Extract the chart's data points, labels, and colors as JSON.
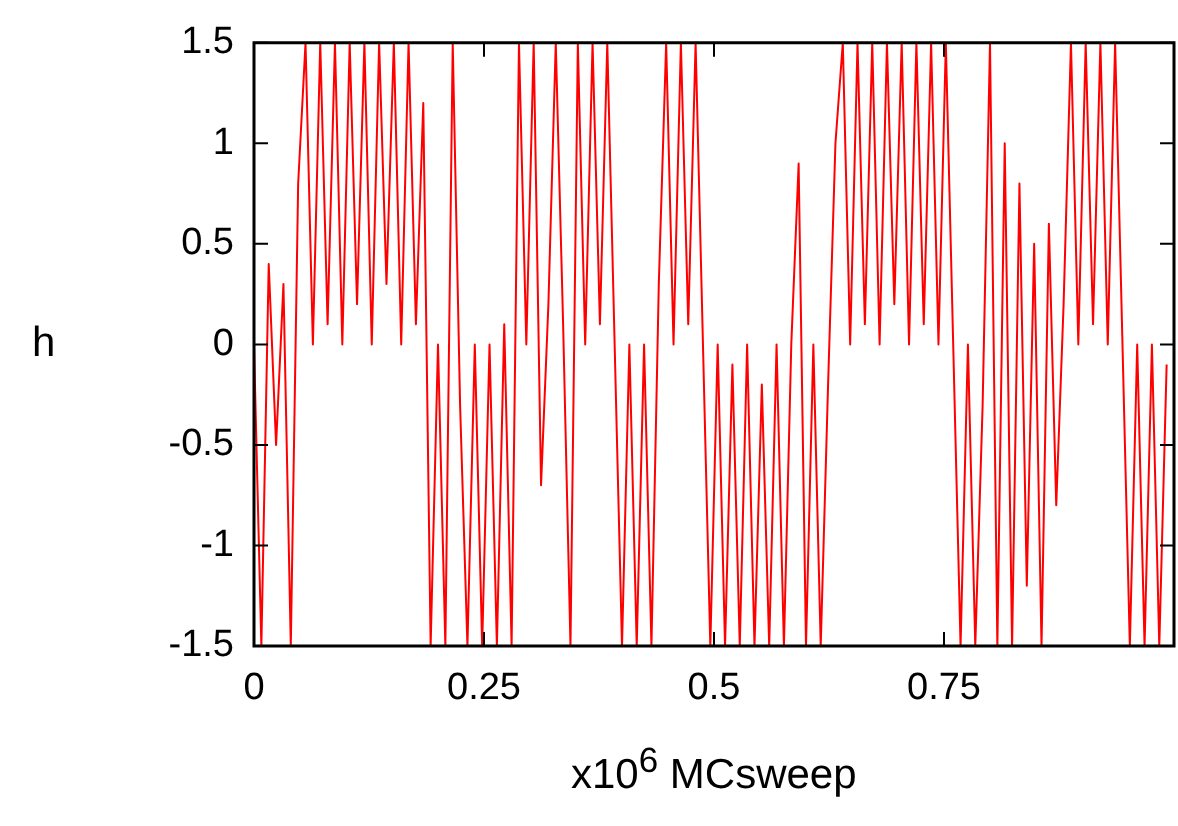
{
  "chart_data": {
    "type": "line",
    "xlabel": "x10$^{6}$ MCsweep",
    "ylabel": "h",
    "x": [
      0,
      0.008,
      0.016,
      0.024,
      0.032,
      0.04,
      0.048,
      0.056,
      0.064,
      0.072,
      0.08,
      0.088,
      0.096,
      0.104,
      0.112,
      0.12,
      0.128,
      0.136,
      0.144,
      0.152,
      0.16,
      0.168,
      0.176,
      0.184,
      0.192,
      0.2,
      0.208,
      0.216,
      0.224,
      0.232,
      0.24,
      0.248,
      0.256,
      0.264,
      0.272,
      0.28,
      0.288,
      0.296,
      0.304,
      0.312,
      0.32,
      0.328,
      0.336,
      0.344,
      0.352,
      0.36,
      0.368,
      0.376,
      0.384,
      0.392,
      0.4,
      0.408,
      0.416,
      0.424,
      0.432,
      0.44,
      0.448,
      0.456,
      0.464,
      0.472,
      0.48,
      0.488,
      0.496,
      0.504,
      0.512,
      0.52,
      0.528,
      0.536,
      0.544,
      0.552,
      0.56,
      0.568,
      0.576,
      0.584,
      0.592,
      0.6,
      0.608,
      0.616,
      0.624,
      0.632,
      0.64,
      0.648,
      0.656,
      0.664,
      0.672,
      0.68,
      0.688,
      0.696,
      0.704,
      0.712,
      0.72,
      0.728,
      0.736,
      0.744,
      0.752,
      0.76,
      0.768,
      0.776,
      0.784,
      0.792,
      0.8,
      0.808,
      0.816,
      0.824,
      0.832,
      0.84,
      0.848,
      0.856,
      0.864,
      0.872,
      0.88,
      0.888,
      0.896,
      0.904,
      0.912,
      0.92,
      0.928,
      0.936,
      0.944,
      0.952,
      0.96,
      0.968,
      0.976,
      0.984,
      0.992
    ],
    "series": [
      {
        "color": "#ff0000",
        "values": [
          0,
          -1.5,
          0.4,
          -0.5,
          0.3,
          -1.5,
          0.8,
          1.5,
          0,
          1.5,
          0.1,
          1.5,
          0,
          1.5,
          0.2,
          1.5,
          0,
          1.5,
          0.3,
          1.5,
          0,
          1.5,
          0.1,
          1.2,
          -1.5,
          0,
          -1.5,
          1.5,
          -0.3,
          -1.5,
          0,
          -1.5,
          0,
          -1.5,
          0.1,
          -1.5,
          1.5,
          0,
          1.5,
          -0.7,
          0.2,
          1.5,
          0.1,
          -1.5,
          1.5,
          0,
          1.5,
          0.1,
          1.5,
          0,
          -1.5,
          0,
          -1.5,
          0,
          -1.5,
          0.3,
          1.5,
          0,
          1.5,
          0.1,
          1.5,
          0,
          -1.5,
          0,
          -1.5,
          -0.1,
          -1.5,
          0,
          -1.5,
          -0.2,
          -1.5,
          0,
          -1.5,
          0,
          0.9,
          -1.5,
          0,
          -1.5,
          -0.2,
          1,
          1.5,
          0,
          1.5,
          0.1,
          1.5,
          0,
          1.5,
          0.2,
          1.5,
          0,
          1.5,
          0.1,
          1.5,
          0,
          1.5,
          0,
          -1.5,
          0,
          -1.5,
          -0.3,
          1.5,
          -1.5,
          1,
          -1.5,
          0.8,
          -1.2,
          0.5,
          -1.5,
          0.6,
          -0.8,
          0.2,
          1.5,
          0,
          1.5,
          0.1,
          1.5,
          0,
          1.5,
          0,
          -1.5,
          0,
          -1.5,
          0,
          -1.5,
          -0.1
        ]
      }
    ],
    "xlim": [
      0,
      1
    ],
    "xticks": [
      0,
      0.25,
      0.5,
      0.75
    ],
    "ylim": [
      -1.5,
      1.5
    ],
    "yticks": [
      -1.5,
      -1,
      -0.5,
      0,
      0.5,
      1,
      1.5
    ],
    "grid": false,
    "legend": false,
    "marker": "none",
    "line_style": "solid"
  }
}
